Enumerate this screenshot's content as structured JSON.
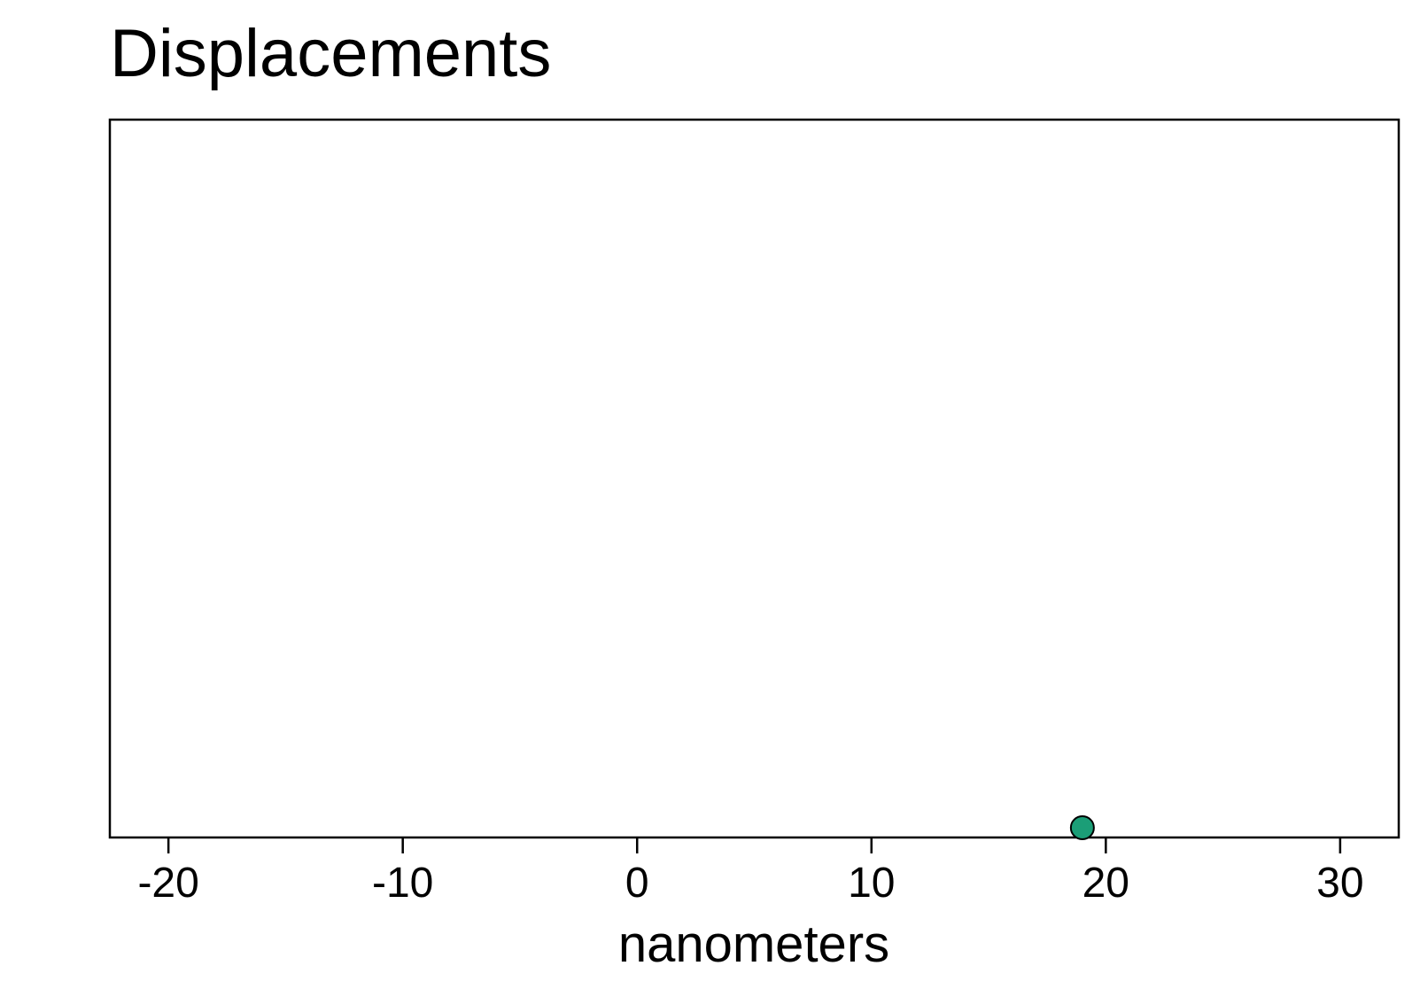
{
  "chart_data": {
    "type": "scatter",
    "title": "Displacements",
    "xlabel": "nanometers",
    "ylabel": "",
    "xlim": [
      -22.5,
      32.5
    ],
    "x_ticks": [
      -20,
      -10,
      0,
      10,
      20,
      30
    ],
    "x_tick_labels": [
      "-20",
      "-10",
      "0",
      "10",
      "20",
      "30"
    ],
    "grid": false,
    "y_axis_visible": false,
    "series": [
      {
        "points": [
          {
            "x": 19.0,
            "y": 0
          }
        ],
        "color": "#1b9e77",
        "edge_color": "#000000"
      }
    ]
  }
}
